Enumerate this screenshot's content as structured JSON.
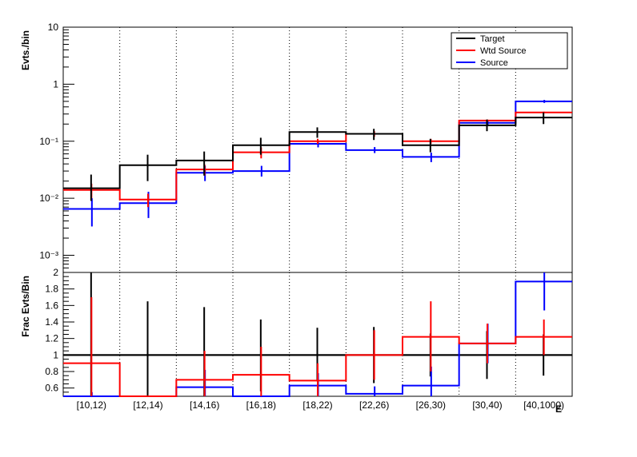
{
  "colors": {
    "Target": "#000000",
    "Wtd Source": "#ff0000",
    "Source": "#0000ff"
  },
  "chart_data": [
    {
      "type": "line",
      "ylabel": "Evts./bin",
      "yscale": "log",
      "ylim": [
        0.0005,
        10
      ],
      "y_ticks": [
        "10⁻³",
        "10⁻²",
        "10⁻¹",
        "1",
        "10"
      ],
      "categories": [
        "[10,12)",
        "[12,14)",
        "[14,16)",
        "[16,18)",
        "[18,22)",
        "[22,26)",
        "[26,30)",
        "[30,40)",
        "[40,1000)"
      ],
      "legend": {
        "placement": "top-right",
        "entries": [
          "Target",
          "Wtd Source",
          "Source"
        ]
      },
      "series": [
        {
          "name": "Target",
          "values": [
            0.015,
            0.038,
            0.046,
            0.085,
            0.145,
            0.135,
            0.085,
            0.19,
            0.26
          ],
          "err_low": [
            0.009,
            0.02,
            0.025,
            0.058,
            0.115,
            0.105,
            0.064,
            0.15,
            0.2
          ],
          "err_high": [
            0.026,
            0.058,
            0.066,
            0.115,
            0.175,
            0.165,
            0.11,
            0.24,
            0.32
          ]
        },
        {
          "name": "Wtd Source",
          "values": [
            0.014,
            0.0095,
            0.032,
            0.064,
            0.1,
            0.135,
            0.1,
            0.23,
            0.32
          ],
          "err_low": [
            0.01,
            0.007,
            0.025,
            0.05,
            0.09,
            0.12,
            0.09,
            0.22,
            0.31
          ],
          "err_high": [
            0.018,
            0.012,
            0.039,
            0.078,
            0.11,
            0.15,
            0.11,
            0.24,
            0.33
          ]
        },
        {
          "name": "Source",
          "values": [
            0.0065,
            0.0082,
            0.028,
            0.03,
            0.09,
            0.07,
            0.053,
            0.21,
            0.5
          ],
          "err_low": [
            0.0032,
            0.0045,
            0.02,
            0.024,
            0.078,
            0.062,
            0.043,
            0.19,
            0.47
          ],
          "err_high": [
            0.01,
            0.013,
            0.037,
            0.037,
            0.102,
            0.079,
            0.063,
            0.23,
            0.53
          ]
        }
      ]
    },
    {
      "type": "line",
      "ylabel": "Frac Evts/Bin",
      "xlabel": "E",
      "ylim": [
        0.5,
        2
      ],
      "y_ticks": [
        "0.6",
        "0.8",
        "1",
        "1.2",
        "1.4",
        "1.6",
        "1.8",
        "2"
      ],
      "categories": [
        "[10,12)",
        "[12,14)",
        "[14,16)",
        "[16,18)",
        "[18,22)",
        "[22,26)",
        "[26,30)",
        "[30,40)",
        "[40,1000)"
      ],
      "reference_line": 1,
      "series": [
        {
          "name": "Target",
          "values": [
            1,
            1,
            1,
            1,
            1,
            1,
            1,
            1,
            1
          ],
          "err_low": [
            0.4,
            0.4,
            0.42,
            0.56,
            0.68,
            0.66,
            0.74,
            0.71,
            0.75
          ],
          "err_high": [
            2.0,
            1.65,
            1.58,
            1.43,
            1.33,
            1.34,
            1.26,
            1.29,
            1.25
          ]
        },
        {
          "name": "Wtd Source",
          "values": [
            0.9,
            0.25,
            0.7,
            0.76,
            0.69,
            1.0,
            1.22,
            1.14,
            1.22
          ],
          "err_low": [
            0.1,
            0.1,
            0.4,
            0.4,
            0.5,
            0.7,
            0.8,
            0.9,
            1.0
          ],
          "err_high": [
            1.7,
            0.5,
            1.05,
            1.1,
            0.9,
            1.3,
            1.65,
            1.38,
            1.43
          ]
        },
        {
          "name": "Source",
          "values": [
            0.4,
            0.2,
            0.61,
            0.35,
            0.63,
            0.53,
            0.63,
            1.14,
            1.89
          ],
          "err_low": [
            0.3,
            0.1,
            0.4,
            0.25,
            0.5,
            0.45,
            0.5,
            0.9,
            1.54
          ],
          "err_high": [
            0.55,
            0.3,
            0.82,
            0.48,
            0.78,
            0.62,
            0.86,
            1.38,
            2.05
          ]
        }
      ]
    }
  ]
}
